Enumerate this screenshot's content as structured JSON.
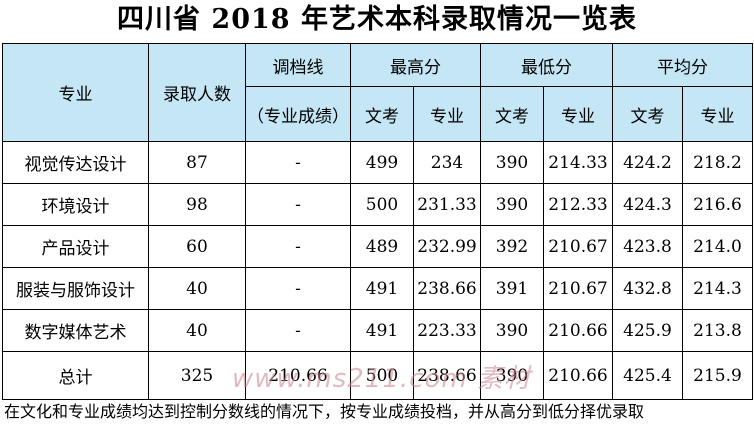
{
  "title": "四川省 2018 年艺术本科录取情况一览表",
  "table": {
    "headers": {
      "major": "专业",
      "admitted": "录取人数",
      "adjust_line_1": "调档线",
      "adjust_line_2": "（专业成绩）",
      "max": "最高分",
      "min": "最低分",
      "avg": "平均分",
      "culture": "文考",
      "specialty": "专业"
    },
    "rows": [
      {
        "major": "视觉传达设计",
        "admitted": "87",
        "adjust": "-",
        "max_culture": "499",
        "max_specialty": "234",
        "min_culture": "390",
        "min_specialty": "214.33",
        "avg_culture": "424.2",
        "avg_specialty": "218.2"
      },
      {
        "major": "环境设计",
        "admitted": "98",
        "adjust": "-",
        "max_culture": "500",
        "max_specialty": "231.33",
        "min_culture": "390",
        "min_specialty": "212.33",
        "avg_culture": "424.3",
        "avg_specialty": "216.6"
      },
      {
        "major": "产品设计",
        "admitted": "60",
        "adjust": "-",
        "max_culture": "489",
        "max_specialty": "232.99",
        "min_culture": "392",
        "min_specialty": "210.67",
        "avg_culture": "423.8",
        "avg_specialty": "214.0"
      },
      {
        "major": "服装与服饰设计",
        "admitted": "40",
        "adjust": "-",
        "max_culture": "491",
        "max_specialty": "238.66",
        "min_culture": "391",
        "min_specialty": "210.67",
        "avg_culture": "432.8",
        "avg_specialty": "214.3"
      },
      {
        "major": "数字媒体艺术",
        "admitted": "40",
        "adjust": "-",
        "max_culture": "491",
        "max_specialty": "223.33",
        "min_culture": "390",
        "min_specialty": "210.66",
        "avg_culture": "425.9",
        "avg_specialty": "213.8"
      },
      {
        "major": "总计",
        "admitted": "325",
        "adjust": "210.66",
        "max_culture": "500",
        "max_specialty": "238.66",
        "min_culture": "390",
        "min_specialty": "210.66",
        "avg_culture": "425.4",
        "avg_specialty": "215.9"
      }
    ]
  },
  "footnote": "在文化和专业成绩均达到控制分数线的情况下，按专业成绩投档，并从高分到低分择优录取",
  "watermark": "www.ms211.com 素材",
  "colors": {
    "header_bg": "#c5e6f5",
    "border": "#000000"
  }
}
